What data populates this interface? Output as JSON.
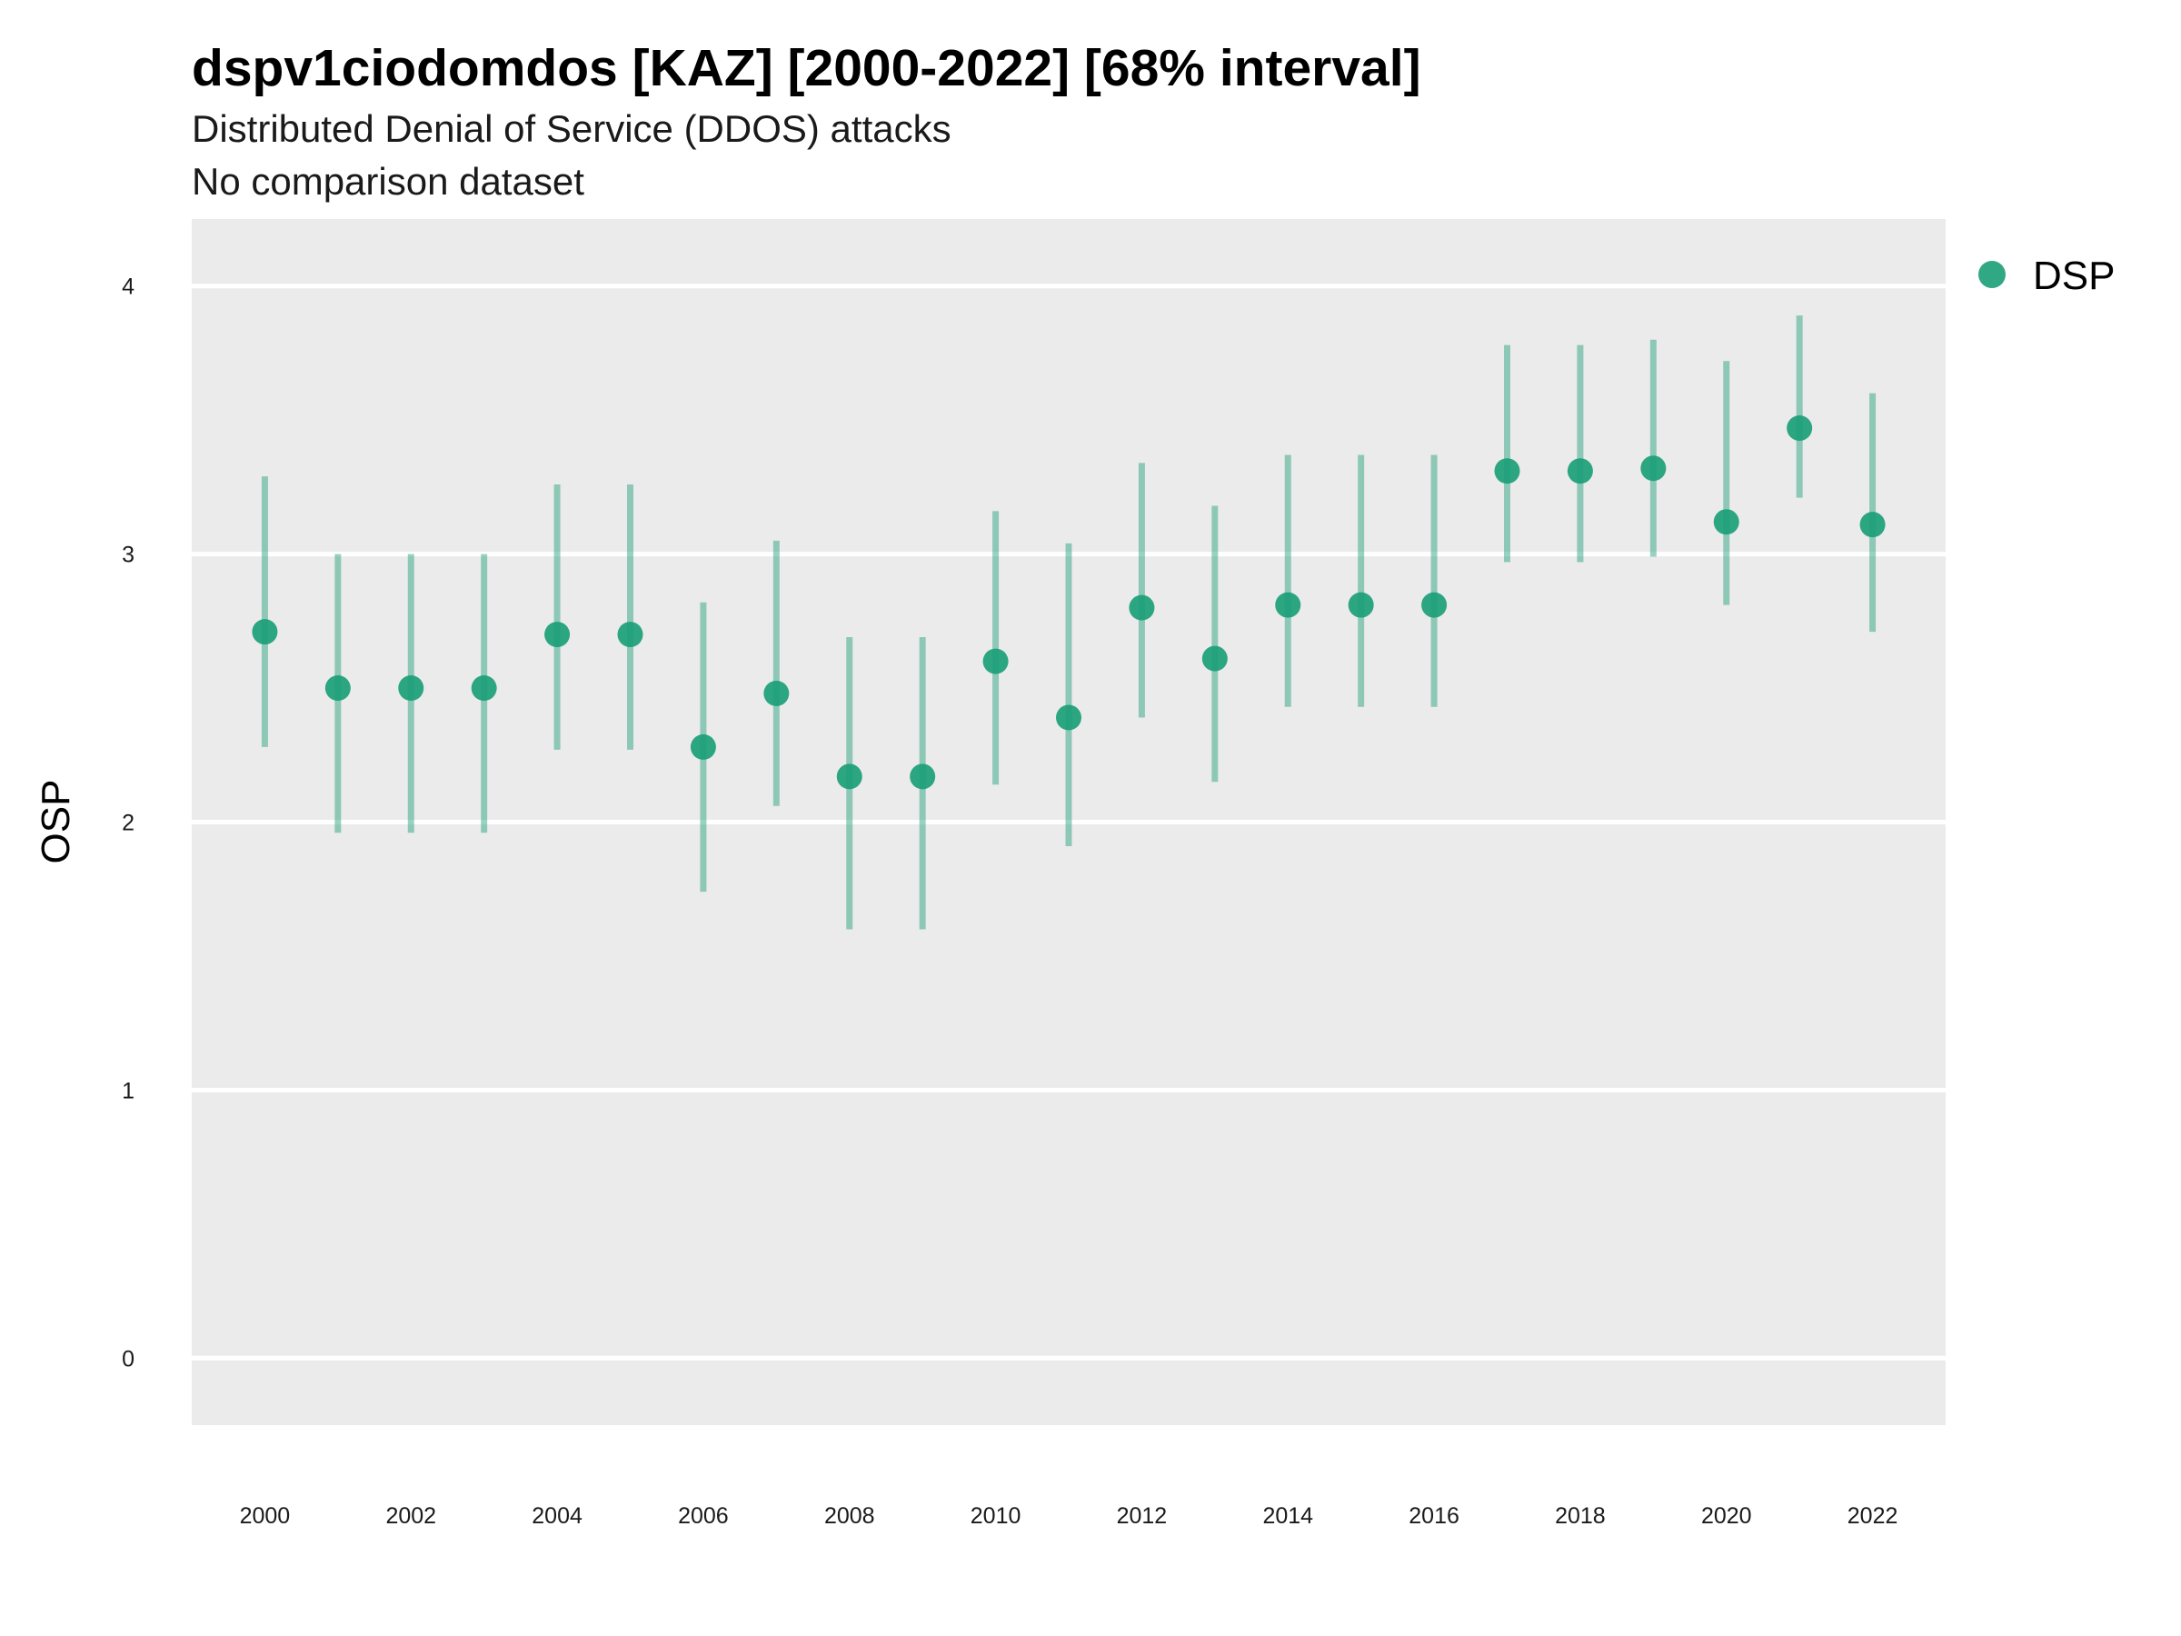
{
  "chart_data": {
    "type": "scatter",
    "title": "dspv1ciodomdos [KAZ] [2000-2022] [68% interval]",
    "subtitle": "Distributed Denial of Service (DDOS) attacks",
    "subtitle2": "No comparison dataset",
    "ylabel": "OSP",
    "xlabel": "",
    "ylim": [
      -0.25,
      4.25
    ],
    "xlim": [
      1999,
      2023
    ],
    "y_ticks": [
      "0",
      "1",
      "2",
      "3",
      "4"
    ],
    "x_ticks": [
      "2000",
      "2002",
      "2004",
      "2006",
      "2008",
      "2010",
      "2012",
      "2014",
      "2016",
      "2018",
      "2020",
      "2022"
    ],
    "grid": true,
    "legend_position": "right",
    "series": [
      {
        "name": "DSP",
        "color": "#1b9e77",
        "x": [
          2000,
          2001,
          2002,
          2003,
          2004,
          2005,
          2006,
          2007,
          2008,
          2009,
          2010,
          2011,
          2012,
          2013,
          2014,
          2015,
          2016,
          2017,
          2018,
          2019,
          2020,
          2021,
          2022
        ],
        "y": [
          2.71,
          2.5,
          2.5,
          2.5,
          2.7,
          2.7,
          2.28,
          2.48,
          2.17,
          2.17,
          2.6,
          2.39,
          2.8,
          2.61,
          2.81,
          2.81,
          2.81,
          3.31,
          3.31,
          3.32,
          3.12,
          3.47,
          3.11
        ],
        "lower": [
          2.28,
          1.96,
          1.96,
          1.96,
          2.27,
          2.27,
          1.74,
          2.06,
          1.6,
          1.6,
          2.14,
          1.91,
          2.39,
          2.15,
          2.43,
          2.43,
          2.43,
          2.97,
          2.97,
          2.99,
          2.81,
          3.21,
          2.71
        ],
        "upper": [
          3.29,
          3.0,
          3.0,
          3.0,
          3.26,
          3.26,
          2.82,
          3.05,
          2.69,
          2.69,
          3.16,
          3.04,
          3.34,
          3.18,
          3.37,
          3.37,
          3.37,
          3.78,
          3.78,
          3.8,
          3.72,
          3.89,
          3.6
        ]
      }
    ]
  }
}
